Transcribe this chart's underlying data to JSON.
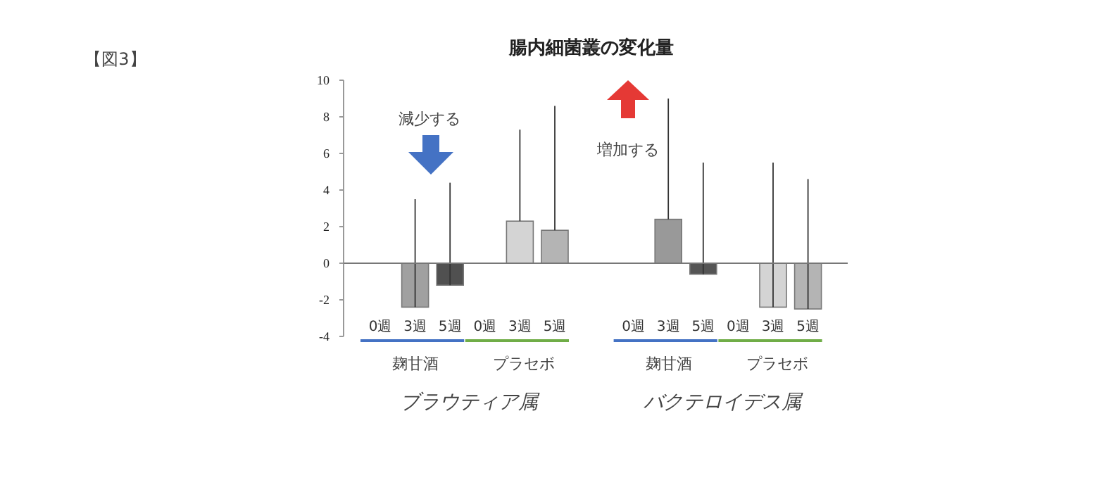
{
  "chart_data": {
    "type": "bar",
    "title": "腸内細菌叢の変化量",
    "categories": [
      "0週",
      "3週",
      "5週",
      "0週",
      "3週",
      "5週",
      "0週",
      "3週",
      "5週",
      "0週",
      "3週",
      "5週"
    ],
    "values": [
      0,
      -2.4,
      -1.2,
      0,
      2.3,
      1.8,
      0,
      2.4,
      -0.6,
      0,
      -2.4,
      -2.5
    ],
    "colors": [
      "#a0a0a0",
      "#a0a0a0",
      "#505050",
      "#d4d4d4",
      "#d4d4d4",
      "#b4b4b4",
      "#999999",
      "#999999",
      "#555555",
      "#d4d4d4",
      "#d4d4d4",
      "#b4b4b4"
    ],
    "errors": [
      null,
      [
        -2.4,
        3.5
      ],
      [
        -1.2,
        4.4
      ],
      null,
      [
        2.3,
        7.3
      ],
      [
        1.8,
        8.6
      ],
      null,
      [
        2.4,
        9.0
      ],
      [
        -0.6,
        5.5
      ],
      null,
      [
        -2.4,
        5.5
      ],
      [
        -2.5,
        4.6
      ]
    ],
    "ylim": [
      -4,
      10
    ],
    "yticks": [
      -4,
      -2,
      0,
      2,
      4,
      6,
      8,
      10
    ],
    "annotations": [
      "【図3】",
      "減少する",
      "増加する",
      "麹甘酒",
      "プラセボ",
      "麹甘酒",
      "プラセボ",
      "ブラウティア属",
      "バクテロイデス属"
    ],
    "tick_labels": true
  }
}
